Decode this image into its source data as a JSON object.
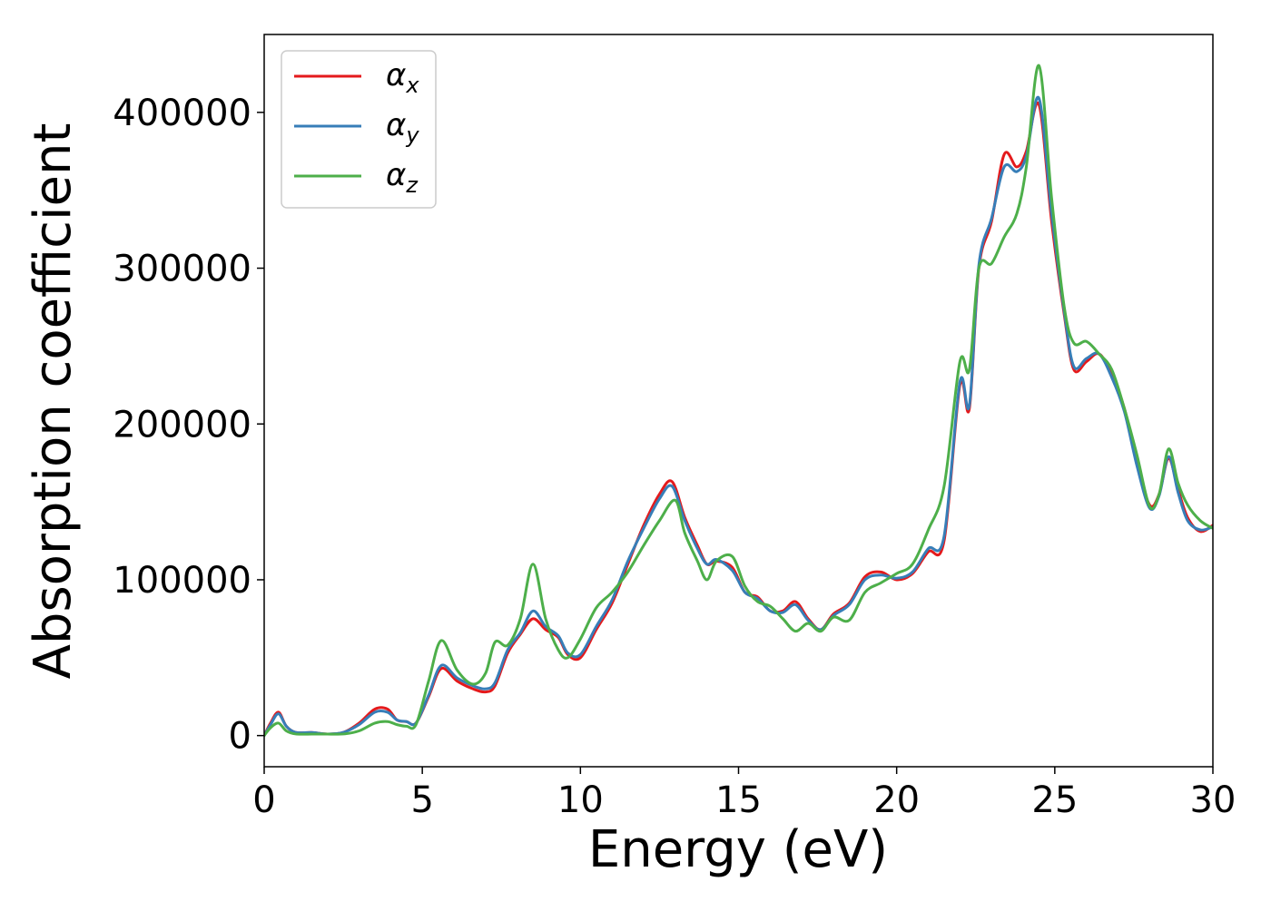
{
  "chart_data": {
    "type": "line",
    "title": "",
    "xlabel": "Energy (eV)",
    "ylabel": "Absorption coefficient",
    "xlim": [
      0,
      30
    ],
    "ylim": [
      -20000,
      450000
    ],
    "xticks": [
      0,
      5,
      10,
      15,
      20,
      25,
      30
    ],
    "xtick_labels": [
      "0",
      "5",
      "10",
      "15",
      "20",
      "25",
      "30"
    ],
    "yticks": [
      0,
      100000,
      200000,
      300000,
      400000
    ],
    "ytick_labels": [
      "0",
      "100000",
      "200000",
      "300000",
      "400000"
    ],
    "grid": false,
    "legend_position": "top-left",
    "series": [
      {
        "name": "αx",
        "symbol": "α",
        "subscript": "x",
        "color": "#e41a1c",
        "x": [
          0,
          0.2,
          0.45,
          0.7,
          1.0,
          1.5,
          2.0,
          2.5,
          3.0,
          3.5,
          3.9,
          4.2,
          4.5,
          4.8,
          5.2,
          5.6,
          6.1,
          6.6,
          7.0,
          7.3,
          7.7,
          8.1,
          8.5,
          8.9,
          9.3,
          9.6,
          10.0,
          10.5,
          11.0,
          11.5,
          12.0,
          12.5,
          12.9,
          13.3,
          13.7,
          14.0,
          14.3,
          14.8,
          15.2,
          15.6,
          16.0,
          16.4,
          16.8,
          17.2,
          17.6,
          18.0,
          18.5,
          19.0,
          19.5,
          20.0,
          20.5,
          21.0,
          21.5,
          22.0,
          22.3,
          22.6,
          23.0,
          23.4,
          23.8,
          24.1,
          24.5,
          24.9,
          25.3,
          25.6,
          26.0,
          26.4,
          26.8,
          27.2,
          27.6,
          28.0,
          28.3,
          28.6,
          28.9,
          29.2,
          29.6,
          30.0
        ],
        "y": [
          0,
          8000,
          15000,
          6000,
          2000,
          2000,
          1000,
          2000,
          8000,
          17000,
          17000,
          10000,
          9000,
          8000,
          25000,
          43000,
          35000,
          30000,
          28000,
          32000,
          53000,
          65000,
          75000,
          68000,
          63000,
          52000,
          50000,
          68000,
          85000,
          110000,
          135000,
          155000,
          163000,
          140000,
          122000,
          110000,
          112000,
          108000,
          92000,
          89000,
          80000,
          80000,
          86000,
          75000,
          68000,
          78000,
          85000,
          102000,
          105000,
          100000,
          104000,
          118000,
          125000,
          225000,
          210000,
          300000,
          330000,
          373000,
          365000,
          375000,
          405000,
          330000,
          270000,
          235000,
          240000,
          245000,
          232000,
          210000,
          175000,
          148000,
          155000,
          178000,
          158000,
          140000,
          131000,
          135000
        ]
      },
      {
        "name": "αy",
        "symbol": "α",
        "subscript": "y",
        "color": "#377eb8",
        "x": [
          0,
          0.2,
          0.45,
          0.7,
          1.0,
          1.5,
          2.0,
          2.5,
          3.0,
          3.5,
          3.9,
          4.2,
          4.5,
          4.8,
          5.2,
          5.6,
          6.1,
          6.6,
          7.0,
          7.3,
          7.7,
          8.1,
          8.5,
          8.9,
          9.3,
          9.6,
          10.0,
          10.5,
          11.0,
          11.5,
          12.0,
          12.5,
          12.9,
          13.3,
          13.7,
          14.0,
          14.3,
          14.8,
          15.2,
          15.6,
          16.0,
          16.4,
          16.8,
          17.2,
          17.6,
          18.0,
          18.5,
          19.0,
          19.5,
          20.0,
          20.5,
          21.0,
          21.5,
          22.0,
          22.3,
          22.6,
          23.0,
          23.4,
          23.8,
          24.1,
          24.5,
          24.9,
          25.3,
          25.6,
          26.0,
          26.4,
          26.8,
          27.2,
          27.6,
          28.0,
          28.3,
          28.6,
          28.9,
          29.2,
          29.6,
          30.0
        ],
        "y": [
          0,
          7000,
          14000,
          6000,
          2000,
          2000,
          1000,
          2000,
          7000,
          15000,
          15000,
          10000,
          9000,
          8000,
          26000,
          45000,
          37000,
          32000,
          30000,
          34000,
          55000,
          66000,
          80000,
          70000,
          64000,
          53000,
          52000,
          70000,
          87000,
          112000,
          133000,
          152000,
          160000,
          138000,
          120000,
          110000,
          113000,
          106000,
          92000,
          88000,
          80000,
          79000,
          84000,
          74000,
          68000,
          77000,
          84000,
          100000,
          103000,
          101000,
          105000,
          120000,
          128000,
          227000,
          212000,
          302000,
          332000,
          365000,
          362000,
          372000,
          409000,
          335000,
          272000,
          237000,
          242000,
          245000,
          230000,
          208000,
          173000,
          146000,
          154000,
          179000,
          156000,
          138000,
          132000,
          134000
        ]
      },
      {
        "name": "αz",
        "symbol": "α",
        "subscript": "z",
        "color": "#4daf4a",
        "x": [
          0,
          0.2,
          0.45,
          0.7,
          1.0,
          1.5,
          2.0,
          2.5,
          3.0,
          3.5,
          3.9,
          4.2,
          4.5,
          4.8,
          5.2,
          5.6,
          6.1,
          6.6,
          7.0,
          7.3,
          7.7,
          8.1,
          8.5,
          8.9,
          9.3,
          9.6,
          10.0,
          10.5,
          11.0,
          11.5,
          12.0,
          12.5,
          13.0,
          13.3,
          13.7,
          14.0,
          14.3,
          14.8,
          15.2,
          15.6,
          16.0,
          16.4,
          16.8,
          17.2,
          17.6,
          18.0,
          18.5,
          19.0,
          19.5,
          20.0,
          20.5,
          21.0,
          21.5,
          22.0,
          22.3,
          22.6,
          23.0,
          23.4,
          23.8,
          24.1,
          24.5,
          24.9,
          25.3,
          25.6,
          26.0,
          26.4,
          26.8,
          27.2,
          27.6,
          28.0,
          28.3,
          28.6,
          28.9,
          29.2,
          29.6,
          30.0
        ],
        "y": [
          0,
          5000,
          8000,
          3000,
          1000,
          1000,
          1000,
          1000,
          3000,
          8000,
          9000,
          7000,
          6000,
          7000,
          35000,
          61000,
          42000,
          33000,
          40000,
          60000,
          58000,
          75000,
          110000,
          75000,
          55000,
          50000,
          62000,
          82000,
          92000,
          105000,
          122000,
          138000,
          151000,
          130000,
          112000,
          100000,
          112000,
          115000,
          96000,
          86000,
          83000,
          75000,
          67000,
          72000,
          67000,
          76000,
          74000,
          92000,
          98000,
          104000,
          110000,
          132000,
          160000,
          240000,
          235000,
          300000,
          303000,
          320000,
          335000,
          365000,
          430000,
          345000,
          275000,
          252000,
          253000,
          245000,
          235000,
          210000,
          180000,
          147000,
          155000,
          184000,
          162000,
          148000,
          138000,
          133000
        ]
      }
    ]
  }
}
